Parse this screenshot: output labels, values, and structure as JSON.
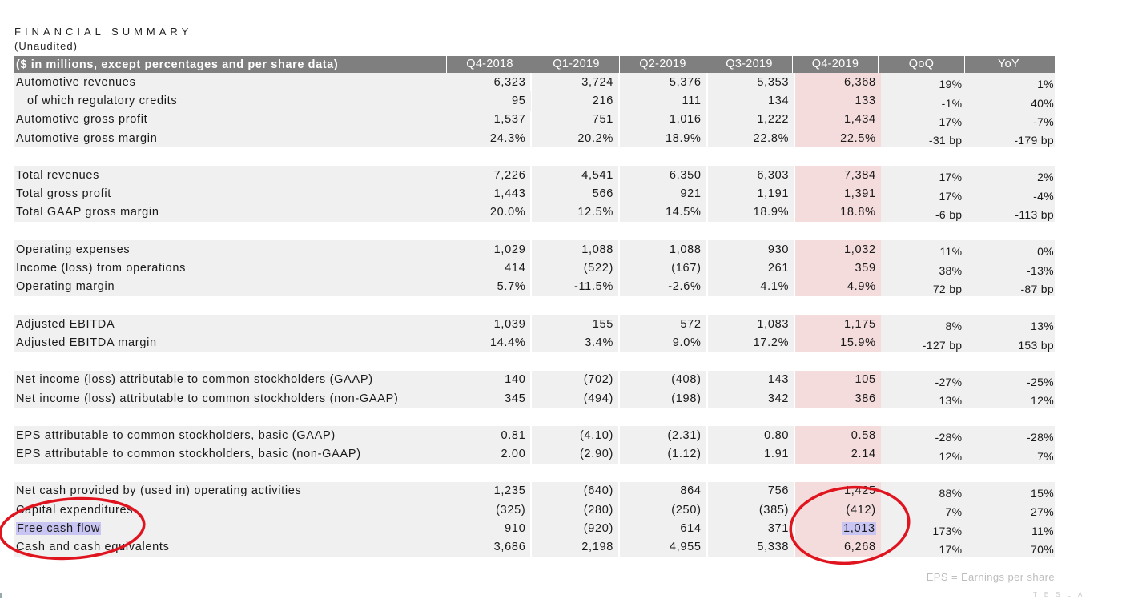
{
  "title": "FINANCIAL SUMMARY",
  "subtitle": "(Unaudited)",
  "header": {
    "label": "($ in millions, except percentages and per share data)",
    "columns": [
      "Q4-2018",
      "Q1-2019",
      "Q2-2019",
      "Q3-2019",
      "Q4-2019",
      "QoQ",
      "YoY"
    ]
  },
  "groups": [
    {
      "rows": [
        {
          "label": "Automotive revenues",
          "values": [
            "6,323",
            "3,724",
            "5,376",
            "5,353",
            "6,368"
          ],
          "qoq": "19%",
          "yoy": "1%"
        },
        {
          "label": "of which regulatory credits",
          "indent": true,
          "values": [
            "95",
            "216",
            "111",
            "134",
            "133"
          ],
          "qoq": "-1%",
          "yoy": "40%"
        },
        {
          "label": "Automotive gross profit",
          "values": [
            "1,537",
            "751",
            "1,016",
            "1,222",
            "1,434"
          ],
          "qoq": "17%",
          "yoy": "-7%"
        },
        {
          "label": "Automotive gross margin",
          "values": [
            "24.3%",
            "20.2%",
            "18.9%",
            "22.8%",
            "22.5%"
          ],
          "qoq": "-31 bp",
          "yoy": "-179 bp"
        }
      ]
    },
    {
      "rows": [
        {
          "label": "Total revenues",
          "values": [
            "7,226",
            "4,541",
            "6,350",
            "6,303",
            "7,384"
          ],
          "qoq": "17%",
          "yoy": "2%"
        },
        {
          "label": "Total gross profit",
          "values": [
            "1,443",
            "566",
            "921",
            "1,191",
            "1,391"
          ],
          "qoq": "17%",
          "yoy": "-4%"
        },
        {
          "label": "Total GAAP gross margin",
          "values": [
            "20.0%",
            "12.5%",
            "14.5%",
            "18.9%",
            "18.8%"
          ],
          "qoq": "-6 bp",
          "yoy": "-113 bp"
        }
      ]
    },
    {
      "rows": [
        {
          "label": "Operating expenses",
          "values": [
            "1,029",
            "1,088",
            "1,088",
            "930",
            "1,032"
          ],
          "qoq": "11%",
          "yoy": "0%"
        },
        {
          "label": "Income (loss) from operations",
          "values": [
            "414",
            "(522)",
            "(167)",
            "261",
            "359"
          ],
          "qoq": "38%",
          "yoy": "-13%"
        },
        {
          "label": "Operating margin",
          "values": [
            "5.7%",
            "-11.5%",
            "-2.6%",
            "4.1%",
            "4.9%"
          ],
          "qoq": "72 bp",
          "yoy": "-87 bp"
        }
      ]
    },
    {
      "rows": [
        {
          "label": "Adjusted EBITDA",
          "values": [
            "1,039",
            "155",
            "572",
            "1,083",
            "1,175"
          ],
          "qoq": "8%",
          "yoy": "13%"
        },
        {
          "label": "Adjusted EBITDA margin",
          "values": [
            "14.4%",
            "3.4%",
            "9.0%",
            "17.2%",
            "15.9%"
          ],
          "qoq": "-127 bp",
          "yoy": "153 bp"
        }
      ]
    },
    {
      "rows": [
        {
          "label": "Net income (loss) attributable to common stockholders (GAAP)",
          "values": [
            "140",
            "(702)",
            "(408)",
            "143",
            "105"
          ],
          "qoq": "-27%",
          "yoy": "-25%"
        },
        {
          "label": "Net income (loss) attributable to common stockholders (non-GAAP)",
          "values": [
            "345",
            "(494)",
            "(198)",
            "342",
            "386"
          ],
          "qoq": "13%",
          "yoy": "12%"
        }
      ]
    },
    {
      "rows": [
        {
          "label": "EPS attributable to common stockholders, basic (GAAP)",
          "values": [
            "0.81",
            "(4.10)",
            "(2.31)",
            "0.80",
            "0.58"
          ],
          "qoq": "-28%",
          "yoy": "-28%"
        },
        {
          "label": "EPS attributable to common stockholders, basic (non-GAAP)",
          "values": [
            "2.00",
            "(2.90)",
            "(1.12)",
            "1.91",
            "2.14"
          ],
          "qoq": "12%",
          "yoy": "7%"
        }
      ]
    },
    {
      "rows": [
        {
          "label": "Net cash provided by (used in) operating activities",
          "values": [
            "1,235",
            "(640)",
            "864",
            "756",
            "1,425"
          ],
          "qoq": "88%",
          "yoy": "15%"
        },
        {
          "label": "Capital expenditures",
          "values": [
            "(325)",
            "(280)",
            "(250)",
            "(385)",
            "(412)"
          ],
          "qoq": "7%",
          "yoy": "27%"
        },
        {
          "label": "Free cash flow",
          "highlight": true,
          "values": [
            "910",
            "(920)",
            "614",
            "371",
            "1,013"
          ],
          "qoq": "173%",
          "yoy": "11%"
        },
        {
          "label": "Cash and cash equivalents",
          "values": [
            "3,686",
            "2,198",
            "4,955",
            "5,338",
            "6,268"
          ],
          "qoq": "17%",
          "yoy": "70%"
        }
      ]
    }
  ],
  "footnote": "EPS = Earnings per share",
  "logo_text": "TESLA",
  "annotation_color": "#e0141e",
  "highlight_color": "#c9c5f3",
  "column_highlight_color": "#f5dcdc"
}
